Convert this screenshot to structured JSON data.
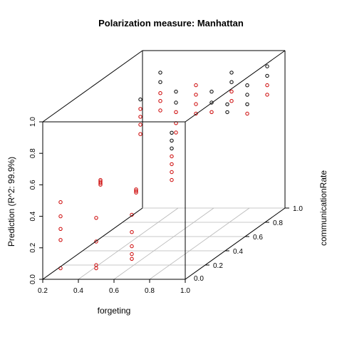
{
  "chart_data": {
    "type": "scatter",
    "title": "Polarization measure: Manhattan",
    "xlabel": "forgeting",
    "ylabel": "communicationRate",
    "zlabel": "Prediction (R^2: 99.9%)",
    "xlim": [
      0.2,
      1.0
    ],
    "ylim": [
      0.0,
      1.0
    ],
    "zlim": [
      0.0,
      1.0
    ],
    "x_ticks": [
      "0.2",
      "0.4",
      "0.6",
      "0.8",
      "1.0"
    ],
    "y_ticks": [
      "0.0",
      "0.2",
      "0.4",
      "0.6",
      "0.8",
      "1.0"
    ],
    "z_ticks": [
      "0.0",
      "0.2",
      "0.4",
      "0.6",
      "0.8",
      "1.0"
    ],
    "grid": "floor",
    "colors": {
      "above_plane": "#000000",
      "below_plane": "#cc0000"
    },
    "points": [
      {
        "x": 0.3,
        "y": 0.0,
        "z": 0.07
      },
      {
        "x": 0.3,
        "y": 0.0,
        "z": 0.25
      },
      {
        "x": 0.3,
        "y": 0.0,
        "z": 0.32
      },
      {
        "x": 0.3,
        "y": 0.0,
        "z": 0.4
      },
      {
        "x": 0.3,
        "y": 0.0,
        "z": 0.49
      },
      {
        "x": 0.5,
        "y": 0.0,
        "z": 0.07
      },
      {
        "x": 0.5,
        "y": 0.0,
        "z": 0.09
      },
      {
        "x": 0.5,
        "y": 0.0,
        "z": 0.24
      },
      {
        "x": 0.5,
        "y": 0.0,
        "z": 0.39
      },
      {
        "x": 0.7,
        "y": 0.0,
        "z": 0.13
      },
      {
        "x": 0.7,
        "y": 0.0,
        "z": 0.16
      },
      {
        "x": 0.7,
        "y": 0.0,
        "z": 0.21
      },
      {
        "x": 0.7,
        "y": 0.0,
        "z": 0.3
      },
      {
        "x": 0.7,
        "y": 0.0,
        "z": 0.41
      },
      {
        "x": 0.3,
        "y": 0.4,
        "z": 0.42
      },
      {
        "x": 0.3,
        "y": 0.4,
        "z": 0.43
      },
      {
        "x": 0.3,
        "y": 0.4,
        "z": 0.44
      },
      {
        "x": 0.3,
        "y": 0.4,
        "z": 0.45
      },
      {
        "x": 0.5,
        "y": 0.4,
        "z": 0.37
      },
      {
        "x": 0.5,
        "y": 0.4,
        "z": 0.38
      },
      {
        "x": 0.5,
        "y": 0.4,
        "z": 0.39
      },
      {
        "x": 0.7,
        "y": 0.4,
        "z": 0.45
      },
      {
        "x": 0.7,
        "y": 0.4,
        "z": 0.5
      },
      {
        "x": 0.7,
        "y": 0.4,
        "z": 0.55
      },
      {
        "x": 0.7,
        "y": 0.4,
        "z": 0.6
      },
      {
        "x": 0.7,
        "y": 0.4,
        "z": 0.65
      },
      {
        "x": 0.7,
        "y": 0.4,
        "z": 0.7
      },
      {
        "x": 0.7,
        "y": 0.4,
        "z": 0.75
      },
      {
        "x": 0.3,
        "y": 0.8,
        "z": 0.56
      },
      {
        "x": 0.3,
        "y": 0.8,
        "z": 0.62
      },
      {
        "x": 0.3,
        "y": 0.8,
        "z": 0.67
      },
      {
        "x": 0.3,
        "y": 0.8,
        "z": 0.72
      },
      {
        "x": 0.3,
        "y": 0.8,
        "z": 0.78
      },
      {
        "x": 0.3,
        "y": 1.0,
        "z": 0.62
      },
      {
        "x": 0.3,
        "y": 1.0,
        "z": 0.68
      },
      {
        "x": 0.3,
        "y": 1.0,
        "z": 0.73
      },
      {
        "x": 0.3,
        "y": 1.0,
        "z": 0.8
      },
      {
        "x": 0.3,
        "y": 1.0,
        "z": 0.86
      },
      {
        "x": 0.5,
        "y": 0.8,
        "z": 0.57
      },
      {
        "x": 0.5,
        "y": 0.8,
        "z": 0.63
      },
      {
        "x": 0.5,
        "y": 0.8,
        "z": 0.7
      },
      {
        "x": 0.5,
        "y": 0.8,
        "z": 0.76
      },
      {
        "x": 0.5,
        "y": 0.8,
        "z": 0.83
      },
      {
        "x": 0.5,
        "y": 1.0,
        "z": 0.6
      },
      {
        "x": 0.5,
        "y": 1.0,
        "z": 0.66
      },
      {
        "x": 0.5,
        "y": 1.0,
        "z": 0.72
      },
      {
        "x": 0.5,
        "y": 1.0,
        "z": 0.78
      },
      {
        "x": 0.7,
        "y": 0.8,
        "z": 0.7
      },
      {
        "x": 0.7,
        "y": 0.8,
        "z": 0.76
      },
      {
        "x": 0.7,
        "y": 0.8,
        "z": 0.83
      },
      {
        "x": 0.7,
        "y": 1.0,
        "z": 0.68
      },
      {
        "x": 0.7,
        "y": 1.0,
        "z": 0.74
      },
      {
        "x": 0.7,
        "y": 1.0,
        "z": 0.8
      },
      {
        "x": 0.7,
        "y": 1.0,
        "z": 0.86
      },
      {
        "x": 0.9,
        "y": 0.6,
        "z": 0.79
      },
      {
        "x": 0.9,
        "y": 0.6,
        "z": 0.84
      },
      {
        "x": 0.9,
        "y": 0.8,
        "z": 0.69
      },
      {
        "x": 0.9,
        "y": 0.8,
        "z": 0.75
      },
      {
        "x": 0.9,
        "y": 0.8,
        "z": 0.81
      },
      {
        "x": 0.9,
        "y": 0.8,
        "z": 0.87
      },
      {
        "x": 0.9,
        "y": 1.0,
        "z": 0.72
      },
      {
        "x": 0.9,
        "y": 1.0,
        "z": 0.78
      },
      {
        "x": 0.9,
        "y": 1.0,
        "z": 0.84
      },
      {
        "x": 0.9,
        "y": 1.0,
        "z": 0.9
      }
    ]
  }
}
